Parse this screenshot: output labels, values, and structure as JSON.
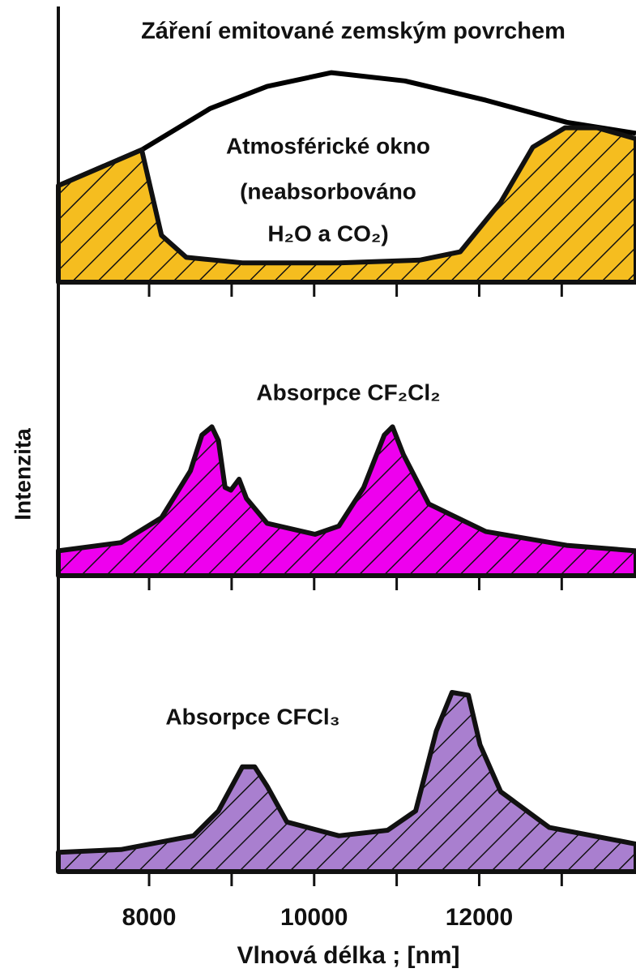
{
  "chart_data": [
    {
      "type": "area",
      "title": "Záření emitované zemským povrchem",
      "annotations": [
        "Atmosférické okno",
        "(neabsorbováno",
        "H₂O a CO₂)"
      ],
      "xlim": [
        6900,
        13900
      ],
      "ylim": [
        0,
        100
      ],
      "xminor": [
        8000,
        9000,
        10000,
        11000,
        12000,
        13000
      ],
      "series": [
        {
          "color": "#000000",
          "filled": false,
          "x": [
            6900,
            7910,
            8740,
            9430,
            10210,
            11100,
            12080,
            13060,
            13900
          ],
          "values": [
            35,
            48,
            63,
            71,
            76,
            73,
            66,
            58,
            54
          ]
        },
        {
          "color": "#f5bd1f",
          "filled": true,
          "x": [
            6900,
            7910,
            8010,
            8150,
            8450,
            9130,
            10300,
            11280,
            11770,
            12260,
            12650,
            13040,
            13430,
            13900
          ],
          "values": [
            35,
            48,
            35,
            17,
            9,
            7,
            7,
            8,
            11,
            29,
            49,
            56,
            56,
            52
          ]
        }
      ]
    },
    {
      "type": "area",
      "ylabel": "Intenzita",
      "annotations": [
        "Absorpce CF₂Cl₂"
      ],
      "xlim": [
        6900,
        13900
      ],
      "ylim": [
        0,
        100
      ],
      "xminor": [
        8000,
        9000,
        10000,
        11000,
        12000,
        13000
      ],
      "series": [
        {
          "color": "#ee00ee",
          "filled": true,
          "x": [
            6900,
            7660,
            8150,
            8500,
            8640,
            8760,
            8840,
            8920,
            8990,
            9090,
            9180,
            9430,
            10010,
            10300,
            10600,
            10850,
            10950,
            11080,
            11390,
            12080,
            13060,
            13900
          ],
          "values": [
            9,
            12,
            21,
            38,
            51,
            54,
            49,
            32,
            31,
            35,
            28,
            19,
            15,
            18,
            32,
            51,
            54,
            44,
            26,
            16,
            11,
            9
          ]
        }
      ]
    },
    {
      "type": "area",
      "xlabel": "Vlnová délka ; [nm]",
      "annotations": [
        "Absorpce CFCl₃"
      ],
      "xlim": [
        6900,
        13900
      ],
      "ylim": [
        0,
        100
      ],
      "xminor": [
        8000,
        9000,
        10000,
        11000,
        12000,
        13000
      ],
      "xticks": [
        8000,
        10000,
        12000
      ],
      "series": [
        {
          "color": "#a97fcf",
          "filled": true,
          "x": [
            6900,
            7660,
            8540,
            8840,
            9130,
            9280,
            9430,
            9670,
            10300,
            10890,
            11230,
            11480,
            11670,
            11870,
            12010,
            12260,
            12850,
            13900
          ],
          "values": [
            7,
            8,
            13,
            22,
            38,
            38,
            31,
            18,
            13,
            15,
            22,
            51,
            65,
            64,
            46,
            29,
            16,
            10
          ]
        }
      ]
    }
  ]
}
